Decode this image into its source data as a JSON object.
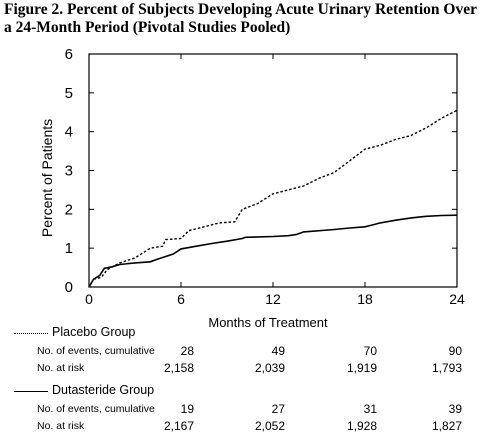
{
  "title": "Figure 2. Percent of Subjects Developing Acute Urinary Retention Over a 24-Month Period (Pivotal Studies Pooled)",
  "chart_data": {
    "type": "line",
    "xlabel": "Months of Treatment",
    "ylabel": "Percent of Patients",
    "xlim": [
      0,
      24
    ],
    "ylim": [
      0,
      6
    ],
    "x_ticks": [
      "0",
      "6",
      "12",
      "18",
      "24"
    ],
    "y_ticks": [
      "0",
      "1",
      "2",
      "3",
      "4",
      "5",
      "6"
    ],
    "grid": false,
    "series": [
      {
        "name": "Placebo Group",
        "style": "dotted",
        "points": [
          [
            0,
            0
          ],
          [
            0.3,
            0.2
          ],
          [
            0.8,
            0.25
          ],
          [
            1.2,
            0.45
          ],
          [
            2,
            0.62
          ],
          [
            3,
            0.75
          ],
          [
            4,
            1.0
          ],
          [
            4.8,
            1.05
          ],
          [
            5,
            1.22
          ],
          [
            6,
            1.25
          ],
          [
            6.5,
            1.45
          ],
          [
            7.5,
            1.55
          ],
          [
            8.5,
            1.65
          ],
          [
            9.5,
            1.68
          ],
          [
            10,
            2.0
          ],
          [
            11,
            2.15
          ],
          [
            12,
            2.4
          ],
          [
            13,
            2.5
          ],
          [
            14,
            2.6
          ],
          [
            15,
            2.8
          ],
          [
            16,
            2.95
          ],
          [
            17,
            3.25
          ],
          [
            18,
            3.55
          ],
          [
            19,
            3.65
          ],
          [
            20,
            3.8
          ],
          [
            21,
            3.9
          ],
          [
            22,
            4.1
          ],
          [
            23,
            4.35
          ],
          [
            24,
            4.55
          ]
        ]
      },
      {
        "name": "Dutasteride Group",
        "style": "solid",
        "points": [
          [
            0,
            0
          ],
          [
            0.3,
            0.2
          ],
          [
            0.7,
            0.3
          ],
          [
            1,
            0.48
          ],
          [
            1.5,
            0.52
          ],
          [
            2,
            0.58
          ],
          [
            3,
            0.62
          ],
          [
            4,
            0.65
          ],
          [
            4.5,
            0.72
          ],
          [
            5.5,
            0.85
          ],
          [
            6,
            0.98
          ],
          [
            7,
            1.05
          ],
          [
            8,
            1.12
          ],
          [
            9,
            1.18
          ],
          [
            10,
            1.25
          ],
          [
            10.2,
            1.28
          ],
          [
            12,
            1.3
          ],
          [
            13,
            1.32
          ],
          [
            13.5,
            1.35
          ],
          [
            14,
            1.42
          ],
          [
            16,
            1.48
          ],
          [
            17,
            1.52
          ],
          [
            18,
            1.55
          ],
          [
            18.5,
            1.6
          ],
          [
            19,
            1.65
          ],
          [
            20,
            1.72
          ],
          [
            21,
            1.78
          ],
          [
            22,
            1.82
          ],
          [
            23,
            1.84
          ],
          [
            24,
            1.85
          ]
        ]
      }
    ]
  },
  "table": {
    "groups": [
      {
        "name": "Placebo Group",
        "line_style": "dotted",
        "rows": [
          {
            "label": "No. of events, cumulative",
            "values": [
              "28",
              "49",
              "70",
              "90"
            ]
          },
          {
            "label": "No. at risk",
            "values": [
              "2,158",
              "2,039",
              "1,919",
              "1,793"
            ]
          }
        ]
      },
      {
        "name": "Dutasteride Group",
        "line_style": "solid",
        "rows": [
          {
            "label": "No. of events, cumulative",
            "values": [
              "19",
              "27",
              "31",
              "39"
            ]
          },
          {
            "label": "No. at risk",
            "values": [
              "2,167",
              "2,052",
              "1,928",
              "1,827"
            ]
          }
        ]
      }
    ]
  }
}
